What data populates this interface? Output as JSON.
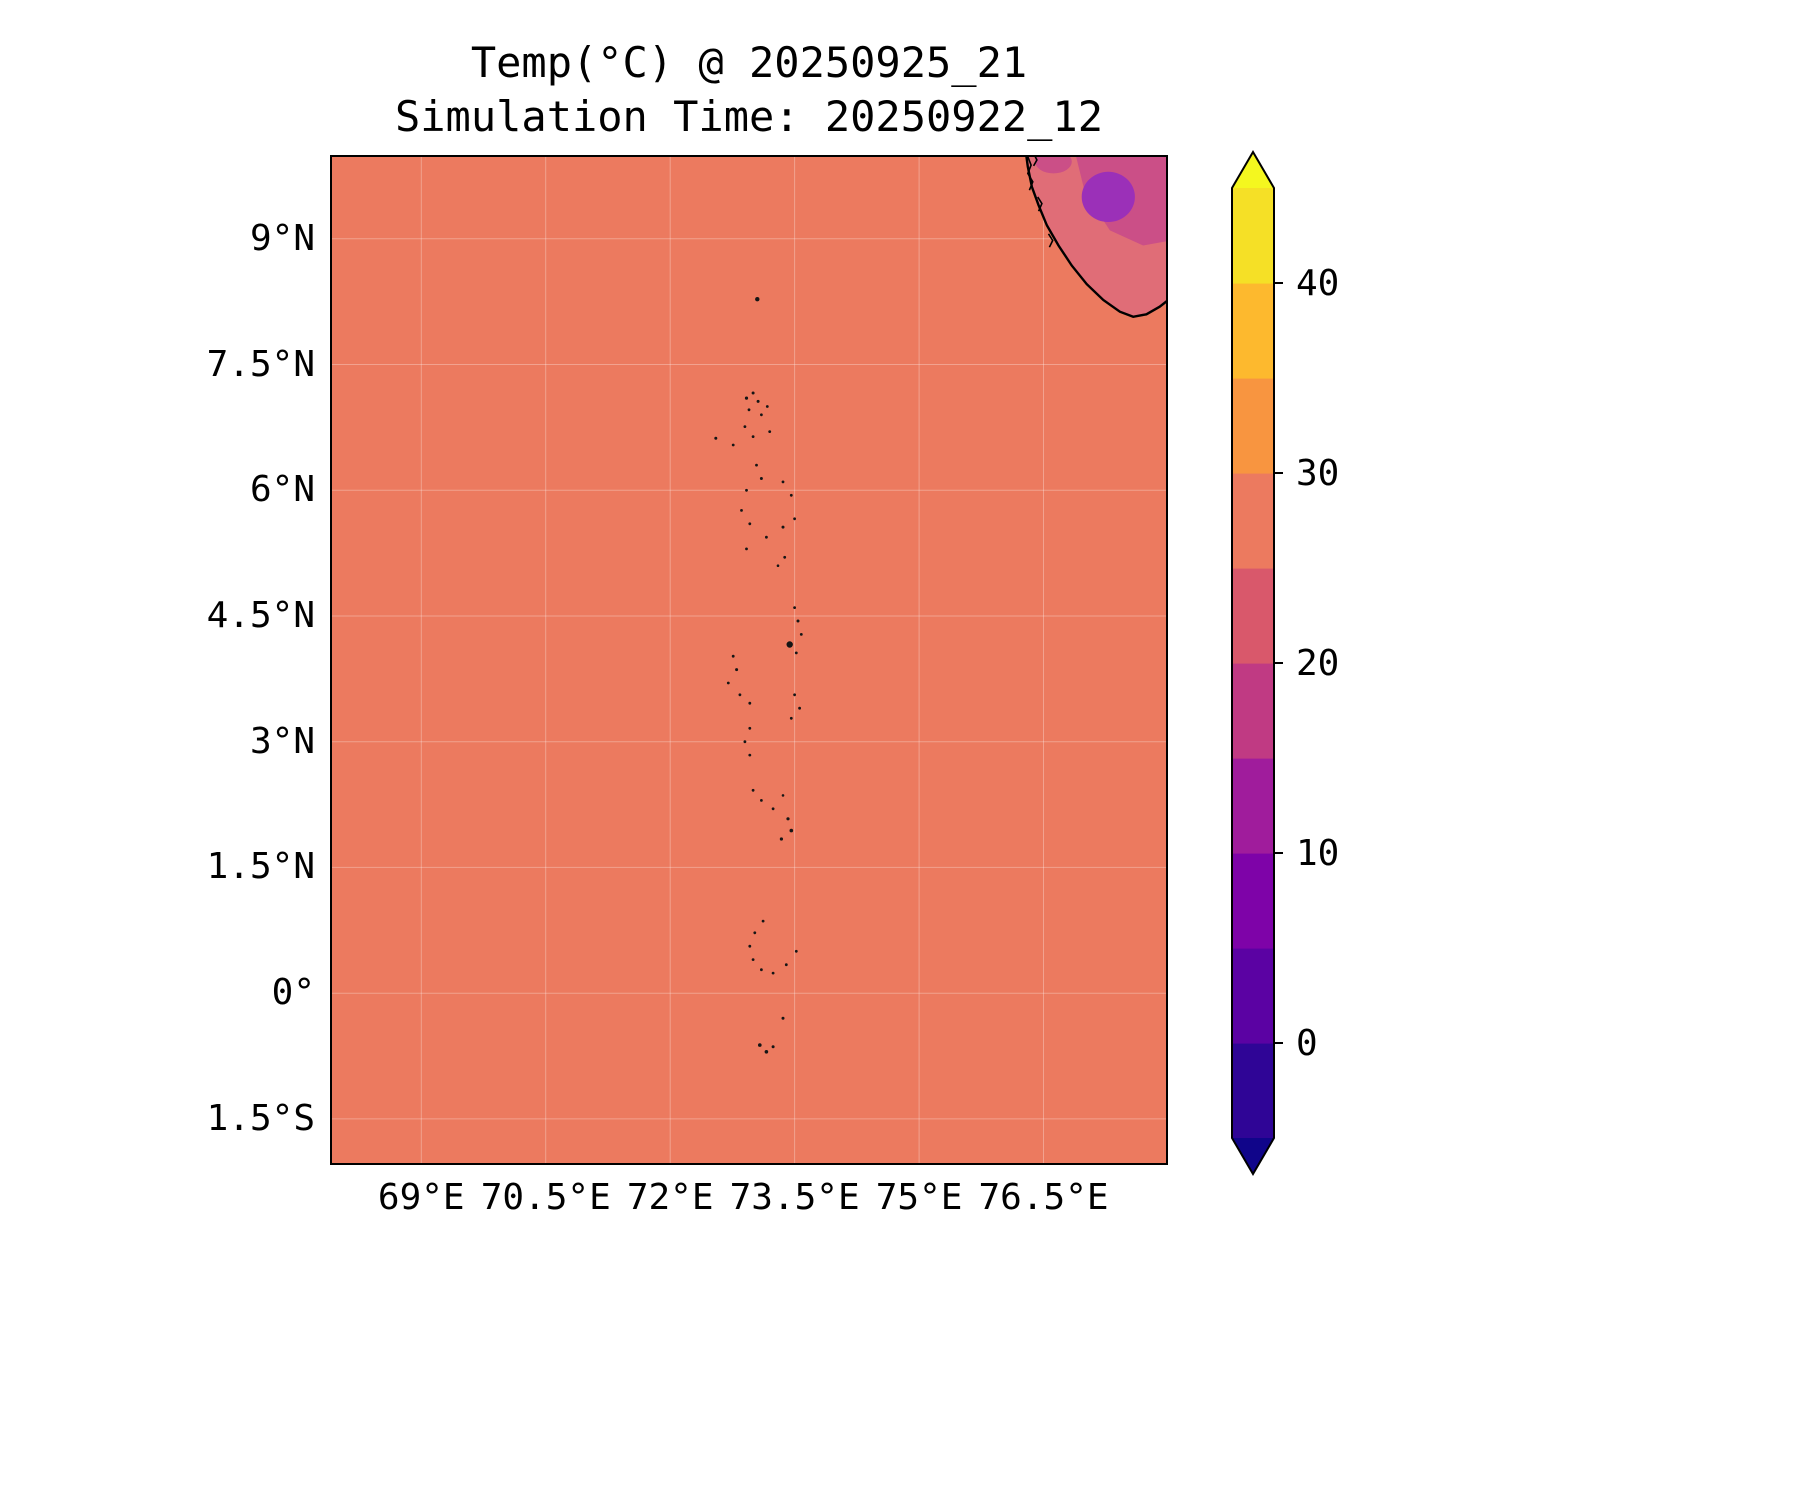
{
  "figure": {
    "title_line1": "Temp(°C) @ 20250925_21",
    "title_line2": "Simulation Time: 20250922_12"
  },
  "chart_data": {
    "type": "heatmap",
    "title": "Temp(°C) @ 20250925_21",
    "subtitle": "Simulation Time: 20250922_12",
    "variable": "Temp",
    "units": "°C",
    "valid_time": "20250925_21",
    "simulation_time": "20250922_12",
    "x_ticks": [
      {
        "lon": 69.0,
        "label": "69°E"
      },
      {
        "lon": 70.5,
        "label": "70.5°E"
      },
      {
        "lon": 72.0,
        "label": "72°E"
      },
      {
        "lon": 73.5,
        "label": "73.5°E"
      },
      {
        "lon": 75.0,
        "label": "75°E"
      },
      {
        "lon": 76.5,
        "label": "76.5°E"
      }
    ],
    "y_ticks": [
      {
        "lat": 9.0,
        "label": "9°N"
      },
      {
        "lat": 7.5,
        "label": "7.5°N"
      },
      {
        "lat": 6.0,
        "label": "6°N"
      },
      {
        "lat": 4.5,
        "label": "4.5°N"
      },
      {
        "lat": 3.0,
        "label": "3°N"
      },
      {
        "lat": 1.5,
        "label": "1.5°N"
      },
      {
        "lat": 0.0,
        "label": "0°"
      },
      {
        "lat": -1.5,
        "label": "1.5°S"
      }
    ],
    "colorbar": {
      "vmin": -5,
      "vmax": 45,
      "levels": [
        -5,
        0,
        5,
        10,
        15,
        20,
        25,
        30,
        35,
        40,
        45
      ],
      "colors": [
        "#2f0596",
        "#5b02a3",
        "#7e03a8",
        "#a01c9c",
        "#c03a83",
        "#d9586b",
        "#ec7a5f",
        "#f89540",
        "#fdb92e",
        "#f5e026"
      ],
      "under_color": "#10058a",
      "over_color": "#f4f71f",
      "ticks": [
        {
          "value": 40,
          "label": "40"
        },
        {
          "value": 30,
          "label": "30"
        },
        {
          "value": 20,
          "label": "20"
        },
        {
          "value": 10,
          "label": "10"
        },
        {
          "value": 0,
          "label": "0"
        }
      ]
    },
    "geo": {
      "extent": {
        "lon_min": 67.9,
        "lon_max": 78.0,
        "lat_min": -2.05,
        "lat_max": 10.0
      },
      "ocean_color": "#ec7a5f",
      "ocean_temp_c": 28,
      "grid_color": "rgba(255,255,255,0.30)",
      "india": {
        "fill": "#e06d77",
        "coast": [
          [
            76.28,
            10.08
          ],
          [
            76.31,
            9.86
          ],
          [
            76.36,
            9.62
          ],
          [
            76.44,
            9.4
          ],
          [
            76.54,
            9.16
          ],
          [
            76.68,
            8.92
          ],
          [
            76.84,
            8.68
          ],
          [
            77.02,
            8.46
          ],
          [
            77.22,
            8.27
          ],
          [
            77.42,
            8.13
          ],
          [
            77.58,
            8.07
          ],
          [
            77.74,
            8.1
          ],
          [
            77.9,
            8.19
          ],
          [
            78.08,
            8.33
          ]
        ],
        "patches": [
          {
            "type": "polygon",
            "color": "#cb4f87",
            "points": [
              [
                76.85,
                10.15
              ],
              [
                78.15,
                10.15
              ],
              [
                78.15,
                9.0
              ],
              [
                77.7,
                8.92
              ],
              [
                77.3,
                9.1
              ],
              [
                77.0,
                9.55
              ]
            ]
          },
          {
            "type": "ellipse",
            "color": "#9b30b8",
            "center": [
              77.28,
              9.5
            ],
            "rx": 0.32,
            "ry": 0.3
          },
          {
            "type": "ellipse",
            "color": "#cb4f87",
            "center": [
              76.62,
              9.92
            ],
            "rx": 0.22,
            "ry": 0.14
          }
        ],
        "coast_details": [
          [
            [
              76.31,
              9.98
            ],
            [
              76.35,
              9.88
            ],
            [
              76.31,
              9.78
            ],
            [
              76.37,
              9.68
            ],
            [
              76.33,
              9.58
            ]
          ],
          [
            [
              76.43,
              9.5
            ],
            [
              76.48,
              9.42
            ],
            [
              76.44,
              9.33
            ]
          ],
          [
            [
              76.38,
              10.02
            ],
            [
              76.42,
              9.94
            ],
            [
              76.38,
              9.87
            ]
          ],
          [
            [
              76.56,
              9.06
            ],
            [
              76.61,
              8.98
            ],
            [
              76.57,
              8.9
            ]
          ]
        ]
      },
      "maldives_dots": [
        [
          73.05,
          8.28,
          2.2
        ],
        [
          72.92,
          7.1,
          1.6
        ],
        [
          73.0,
          7.16,
          1.5
        ],
        [
          73.06,
          7.06,
          1.5
        ],
        [
          72.95,
          6.96,
          1.4
        ],
        [
          73.1,
          6.9,
          1.4
        ],
        [
          73.17,
          7.0,
          1.4
        ],
        [
          72.9,
          6.76,
          1.4
        ],
        [
          73.0,
          6.64,
          1.4
        ],
        [
          73.2,
          6.7,
          1.4
        ],
        [
          72.76,
          6.54,
          1.4
        ],
        [
          72.55,
          6.62,
          1.5
        ],
        [
          73.04,
          6.3,
          1.4
        ],
        [
          73.1,
          6.14,
          1.5
        ],
        [
          73.36,
          6.1,
          1.4
        ],
        [
          72.92,
          6.0,
          1.4
        ],
        [
          73.46,
          5.94,
          1.4
        ],
        [
          72.86,
          5.76,
          1.4
        ],
        [
          72.96,
          5.6,
          1.4
        ],
        [
          73.36,
          5.56,
          1.5
        ],
        [
          73.5,
          5.66,
          1.4
        ],
        [
          73.16,
          5.44,
          1.4
        ],
        [
          72.92,
          5.3,
          1.4
        ],
        [
          73.38,
          5.2,
          1.4
        ],
        [
          73.3,
          5.1,
          1.3
        ],
        [
          73.5,
          4.6,
          1.4
        ],
        [
          73.54,
          4.44,
          1.5
        ],
        [
          73.58,
          4.28,
          1.4
        ],
        [
          73.44,
          4.16,
          3.2
        ],
        [
          73.52,
          4.06,
          1.4
        ],
        [
          72.76,
          4.02,
          1.4
        ],
        [
          72.8,
          3.86,
          1.5
        ],
        [
          72.7,
          3.7,
          1.4
        ],
        [
          72.84,
          3.56,
          1.4
        ],
        [
          72.96,
          3.46,
          1.4
        ],
        [
          73.5,
          3.56,
          1.4
        ],
        [
          73.56,
          3.4,
          1.4
        ],
        [
          73.46,
          3.28,
          1.4
        ],
        [
          72.96,
          3.16,
          1.4
        ],
        [
          72.9,
          3.0,
          1.4
        ],
        [
          72.96,
          2.84,
          1.4
        ],
        [
          73.0,
          2.42,
          1.4
        ],
        [
          73.1,
          2.3,
          1.4
        ],
        [
          73.24,
          2.2,
          1.4
        ],
        [
          73.36,
          2.36,
          1.3
        ],
        [
          73.42,
          2.08,
          1.6
        ],
        [
          73.46,
          1.94,
          1.8
        ],
        [
          73.34,
          1.84,
          1.6
        ],
        [
          73.12,
          0.86,
          1.4
        ],
        [
          73.02,
          0.72,
          1.4
        ],
        [
          72.96,
          0.56,
          1.4
        ],
        [
          73.0,
          0.4,
          1.4
        ],
        [
          73.1,
          0.28,
          1.4
        ],
        [
          73.24,
          0.24,
          1.4
        ],
        [
          73.4,
          0.34,
          1.4
        ],
        [
          73.52,
          0.5,
          1.4
        ],
        [
          73.36,
          -0.3,
          1.5
        ],
        [
          73.08,
          -0.62,
          1.8
        ],
        [
          73.16,
          -0.7,
          1.8
        ],
        [
          73.24,
          -0.64,
          1.5
        ]
      ]
    }
  }
}
